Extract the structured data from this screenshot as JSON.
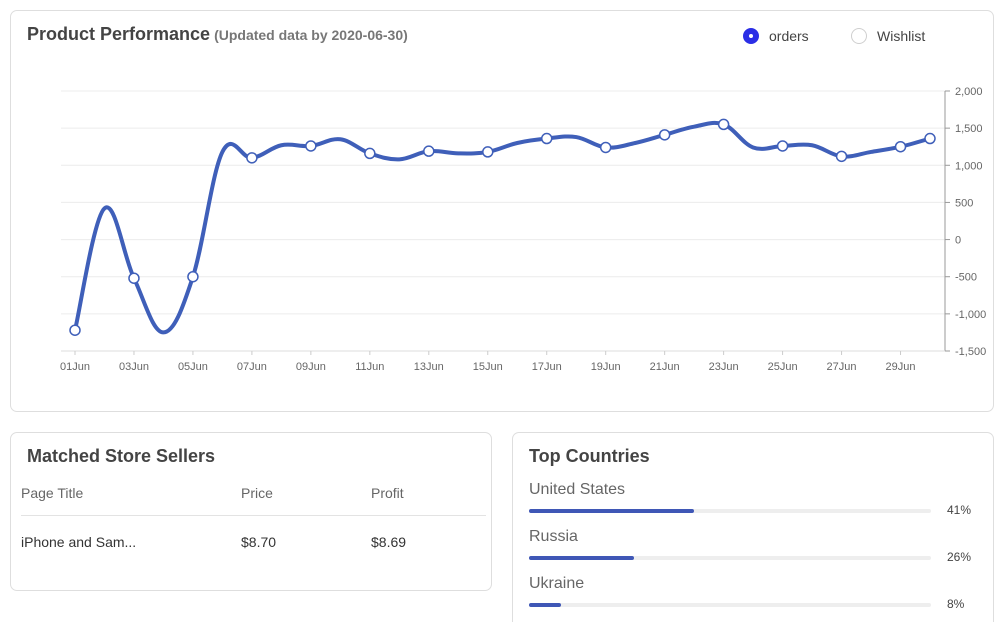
{
  "performance": {
    "title": "Product Performance",
    "subtitle": "(Updated data by 2020-06-30)",
    "toggles": [
      {
        "label": "orders",
        "checked": true
      },
      {
        "label": "Wishlist",
        "checked": false
      }
    ]
  },
  "chart_data": {
    "type": "line",
    "x": [
      "01Jun",
      "02Jun",
      "03Jun",
      "04Jun",
      "05Jun",
      "06Jun",
      "07Jun",
      "08Jun",
      "09Jun",
      "10Jun",
      "11Jun",
      "12Jun",
      "13Jun",
      "14Jun",
      "15Jun",
      "16Jun",
      "17Jun",
      "18Jun",
      "19Jun",
      "20Jun",
      "21Jun",
      "22Jun",
      "23Jun",
      "24Jun",
      "25Jun",
      "26Jun",
      "27Jun",
      "28Jun",
      "29Jun",
      "30Jun"
    ],
    "x_tick_labels": [
      "01Jun",
      "03Jun",
      "05Jun",
      "07Jun",
      "09Jun",
      "11Jun",
      "13Jun",
      "15Jun",
      "17Jun",
      "19Jun",
      "21Jun",
      "23Jun",
      "25Jun",
      "27Jun",
      "29Jun"
    ],
    "series": [
      {
        "values": [
          -1220,
          420,
          -520,
          -1250,
          -500,
          1180,
          1100,
          1270,
          1260,
          1350,
          1160,
          1080,
          1190,
          1160,
          1180,
          1300,
          1360,
          1380,
          1240,
          1300,
          1410,
          1520,
          1550,
          1240,
          1260,
          1270,
          1120,
          1180,
          1250,
          1360
        ],
        "color": "#3f5fb9"
      }
    ],
    "y_ticks": [
      "2,000",
      "1,500",
      "1,000",
      "500",
      "0",
      "-500",
      "-1,000",
      "-1,500"
    ],
    "ylim": [
      -1500,
      2000
    ],
    "grid": true,
    "xlabel": "",
    "ylabel": ""
  },
  "sellers": {
    "title": "Matched Store Sellers",
    "columns": [
      "Page Title",
      "Price",
      "Profit"
    ],
    "rows": [
      {
        "title": "iPhone and Sam...",
        "price": "$8.70",
        "profit": "$8.69"
      }
    ]
  },
  "countries": {
    "title": "Top Countries",
    "items": [
      {
        "name": "United States",
        "pct_label": "41%",
        "fraction": 0.41
      },
      {
        "name": "Russia",
        "pct_label": "26%",
        "fraction": 0.26
      },
      {
        "name": "Ukraine",
        "pct_label": "8%",
        "fraction": 0.08
      }
    ]
  },
  "colors": {
    "accent": "#2b2ee6",
    "line": "#3f5fb9",
    "bar": "#3f57b6",
    "profit": "#1f33e6"
  }
}
